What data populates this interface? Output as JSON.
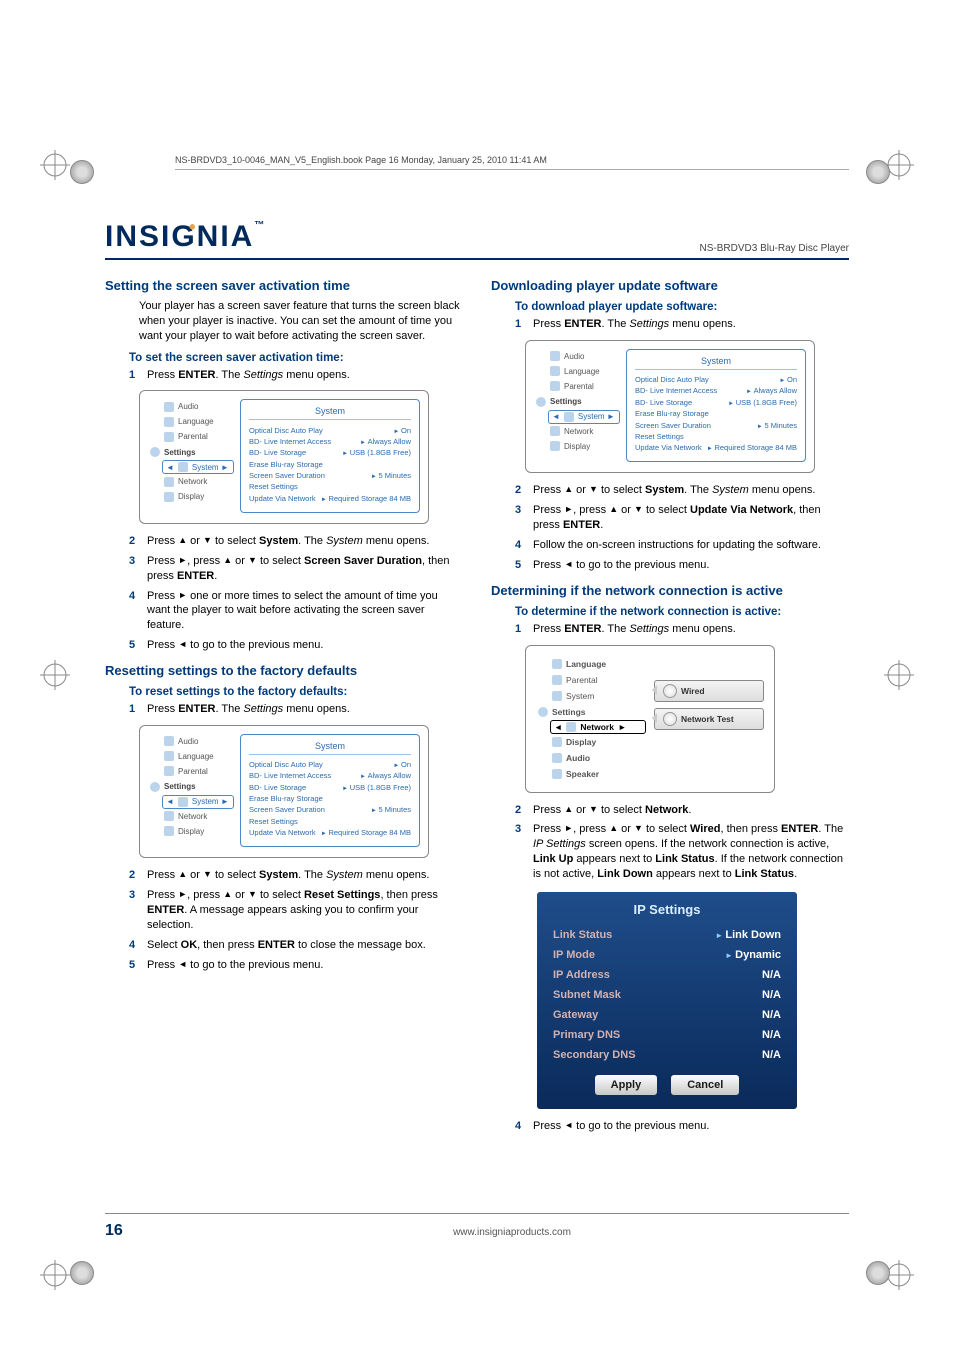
{
  "header_line": "NS-BRDVD3_10-0046_MAN_V5_English.book  Page 16  Monday, January 25, 2010  11:41 AM",
  "brand": "INSIGNIA",
  "model": "NS-BRDVD3 Blu-Ray Disc Player",
  "page_number": "16",
  "footer_url": "www.insigniaproducts.com",
  "left": {
    "h_screen": "Setting the screen saver activation time",
    "intro_screen": "Your player has a screen saver feature that turns the screen black when your player is inactive. You can set the amount of time you want your player to wait before activating the screen saver.",
    "sub_screen": "To set the screen saver activation time:",
    "steps_screen": [
      "Press <b>ENTER</b>. The <em class='ital'>Settings</em> menu opens.",
      "Press <span class='arrow'>▲</span> or <span class='arrow'>▼</span> to select <b>System</b>. The <em class='ital'>System</em> menu opens.",
      "Press <span class='arrow'>►</span>, press <span class='arrow'>▲</span> or <span class='arrow'>▼</span> to select <b>Screen Saver Duration</b>, then press <b>ENTER</b>.",
      "Press <span class='arrow'>►</span> one or more times to select the amount of time you want the player to wait before activating the screen saver feature.",
      "Press <span class='arrow'>◄</span> to go to the previous menu."
    ],
    "h_reset": "Resetting settings to the factory defaults",
    "sub_reset": "To reset settings to the factory defaults:",
    "steps_reset": [
      "Press <b>ENTER</b>. The <em class='ital'>Settings</em> menu opens.",
      "Press <span class='arrow'>▲</span> or <span class='arrow'>▼</span> to select <b>System</b>. The <em class='ital'>System</em> menu opens.",
      "Press <span class='arrow'>►</span>, press <span class='arrow'>▲</span> or <span class='arrow'>▼</span> to select <b>Reset Settings</b>, then press <b>ENTER</b>. A message appears asking you to confirm your selection.",
      "Select <b>OK</b>, then press <b>ENTER</b> to close the message box.",
      "Press <span class='arrow'>◄</span> to go to the previous menu."
    ]
  },
  "right": {
    "h_download": "Downloading player update software",
    "sub_download": "To download player update software:",
    "steps_download": [
      "Press <b>ENTER</b>. The <em class='ital'>Settings</em> menu opens.",
      "Press <span class='arrow'>▲</span> or <span class='arrow'>▼</span> to select <b>System</b>. The <em class='ital'>System</em> menu opens.",
      "Press <span class='arrow'>►</span>, press <span class='arrow'>▲</span> or <span class='arrow'>▼</span> to select <b>Update Via Network</b>, then press <b>ENTER</b>.",
      "Follow the on-screen instructions for updating the software.",
      "Press <span class='arrow'>◄</span> to go to the previous menu."
    ],
    "h_net": "Determining if the network connection is active",
    "sub_net": "To determine if the network connection is active:",
    "steps_net_a": [
      "Press <b>ENTER</b>. The <em class='ital'>Settings</em> menu opens.",
      "Press <span class='arrow'>▲</span> or <span class='arrow'>▼</span> to select <b>Network</b>.",
      "Press <span class='arrow'>►</span>, press <span class='arrow'>▲</span> or <span class='arrow'>▼</span> to select <b>Wired</b>, then press <b>ENTER</b>. The <em class='ital'>IP Settings</em> screen opens. If the network connection is active, <b>Link Up</b> appears next to <b>Link Status</b>. If the network connection is not active, <b>Link Down</b> appears next to <b>Link Status</b>."
    ],
    "steps_net_b": [
      "Press <span class='arrow'>◄</span> to go to the previous menu."
    ]
  },
  "system_menu": {
    "title": "System",
    "side_settings": "Settings",
    "side_items": [
      "Audio",
      "Language",
      "Parental",
      "System",
      "Network",
      "Display"
    ],
    "opts": [
      {
        "k": "Optical Disc Auto Play",
        "v": "On"
      },
      {
        "k": "BD- Live Internet Access",
        "v": "Always Allow"
      },
      {
        "k": "BD- Live Storage",
        "v": "USB (1.8GB Free)"
      },
      {
        "k": "Erase Blu-ray Storage",
        "v": ""
      },
      {
        "k": "Screen Saver Duration",
        "v": "5 Minutes"
      },
      {
        "k": "Reset Settings",
        "v": ""
      },
      {
        "k": "Update Via Network",
        "v": "Required Storage 84  MB"
      }
    ]
  },
  "network_menu": {
    "side_settings": "Settings",
    "side_items": [
      "Language",
      "Parental",
      "System",
      "Network",
      "Display",
      "Audio",
      "Speaker"
    ],
    "buttons": [
      "Wired",
      "Network Test"
    ]
  },
  "ip_settings": {
    "title": "IP Settings",
    "rows": [
      {
        "label": "Link Status",
        "val": "Link Down",
        "tr": true
      },
      {
        "label": "IP Mode",
        "val": "Dynamic",
        "tr": true
      },
      {
        "label": "IP Address",
        "val": "N/A"
      },
      {
        "label": "Subnet Mask",
        "val": "N/A"
      },
      {
        "label": "Gateway",
        "val": "N/A"
      },
      {
        "label": "Primary DNS",
        "val": "N/A"
      },
      {
        "label": "Secondary DNS",
        "val": "N/A"
      }
    ],
    "apply": "Apply",
    "cancel": "Cancel"
  }
}
